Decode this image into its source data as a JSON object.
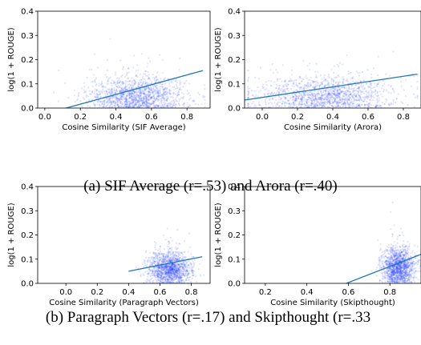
{
  "captions": {
    "a": "(a) SIF Average (r=.53) and Arora (r=.40)",
    "b": "(b) Paragraph Vectors (r=.17) and Skipthought (r=.33"
  },
  "colors": {
    "points": "#1f3cff",
    "fit_line": "#1f77b4",
    "axis": "#000000"
  },
  "chart_data": [
    {
      "type": "scatter",
      "panel": "a-left",
      "xlabel": "Cosine Similarity (SIF Average)",
      "ylabel": "log(1 + ROUGE)",
      "xlim": [
        -0.04,
        0.93
      ],
      "ylim": [
        0,
        0.4
      ],
      "xticks": [
        0.0,
        0.2,
        0.4,
        0.6,
        0.8
      ],
      "xtick_labels": [
        "0.0",
        "0.2",
        "0.4",
        "0.6",
        "0.8"
      ],
      "yticks": [
        0.0,
        0.1,
        0.2,
        0.3,
        0.4
      ],
      "ytick_labels": [
        "0.0",
        "0.1",
        "0.2",
        "0.3",
        "0.4"
      ],
      "cloud": {
        "x_center": 0.52,
        "x_spread": 0.14,
        "x_min": 0.05,
        "x_max": 0.9,
        "y_center": 0.05,
        "y_spread": 0.04
      },
      "fit_line": {
        "x": [
          0.12,
          0.89
        ],
        "y": [
          0.0,
          0.155
        ]
      },
      "grid": false
    },
    {
      "type": "scatter",
      "panel": "a-right",
      "xlabel": "Cosine Similarity (Arora)",
      "ylabel": "log(1 + ROUGE)",
      "xlim": [
        -0.1,
        0.9
      ],
      "ylim": [
        0,
        0.4
      ],
      "xticks": [
        0.0,
        0.2,
        0.4,
        0.6,
        0.8
      ],
      "xtick_labels": [
        "0.0",
        "0.2",
        "0.4",
        "0.6",
        "0.8"
      ],
      "yticks": [
        0.0,
        0.1,
        0.2,
        0.3,
        0.4
      ],
      "ytick_labels": [
        "0.0",
        "0.1",
        "0.2",
        "0.3",
        "0.4"
      ],
      "cloud": {
        "x_center": 0.35,
        "x_spread": 0.2,
        "x_min": -0.08,
        "x_max": 0.88,
        "y_center": 0.05,
        "y_spread": 0.04
      },
      "fit_line": {
        "x": [
          -0.1,
          0.88
        ],
        "y": [
          0.033,
          0.14
        ]
      },
      "grid": false
    },
    {
      "type": "scatter",
      "panel": "b-left",
      "xlabel": "Cosine Similarity (Paragraph Vectors)",
      "ylabel": "log(1 + ROUGE)",
      "xlim": [
        -0.18,
        0.92
      ],
      "ylim": [
        0,
        0.4
      ],
      "xticks": [
        0.0,
        0.2,
        0.4,
        0.6,
        0.8
      ],
      "xtick_labels": [
        "0.0",
        "0.2",
        "0.4",
        "0.6",
        "0.8"
      ],
      "yticks": [
        0.0,
        0.1,
        0.2,
        0.3,
        0.4
      ],
      "ytick_labels": [
        "0.0",
        "0.1",
        "0.2",
        "0.3",
        "0.4"
      ],
      "cloud": {
        "x_center": 0.66,
        "x_spread": 0.07,
        "x_min": 0.38,
        "x_max": 0.88,
        "y_center": 0.06,
        "y_spread": 0.035
      },
      "fit_line": {
        "x": [
          0.4,
          0.87
        ],
        "y": [
          0.05,
          0.11
        ]
      },
      "grid": false
    },
    {
      "type": "scatter",
      "panel": "b-right",
      "xlabel": "Cosine Similarity (Skipthought)",
      "ylabel": "log(1 + ROUGE)",
      "xlim": [
        0.1,
        0.95
      ],
      "ylim": [
        0,
        0.4
      ],
      "xticks": [
        0.2,
        0.4,
        0.6,
        0.8
      ],
      "xtick_labels": [
        "0.2",
        "0.4",
        "0.6",
        "0.8"
      ],
      "yticks": [
        0.0,
        0.1,
        0.2,
        0.3,
        0.4
      ],
      "ytick_labels": [
        "0.0",
        "0.1",
        "0.2",
        "0.3",
        "0.4"
      ],
      "cloud": {
        "x_center": 0.84,
        "x_spread": 0.04,
        "x_min": 0.62,
        "x_max": 0.95,
        "y_center": 0.065,
        "y_spread": 0.04
      },
      "fit_line": {
        "x": [
          0.59,
          0.95
        ],
        "y": [
          0.0,
          0.12
        ]
      },
      "grid": false
    }
  ]
}
